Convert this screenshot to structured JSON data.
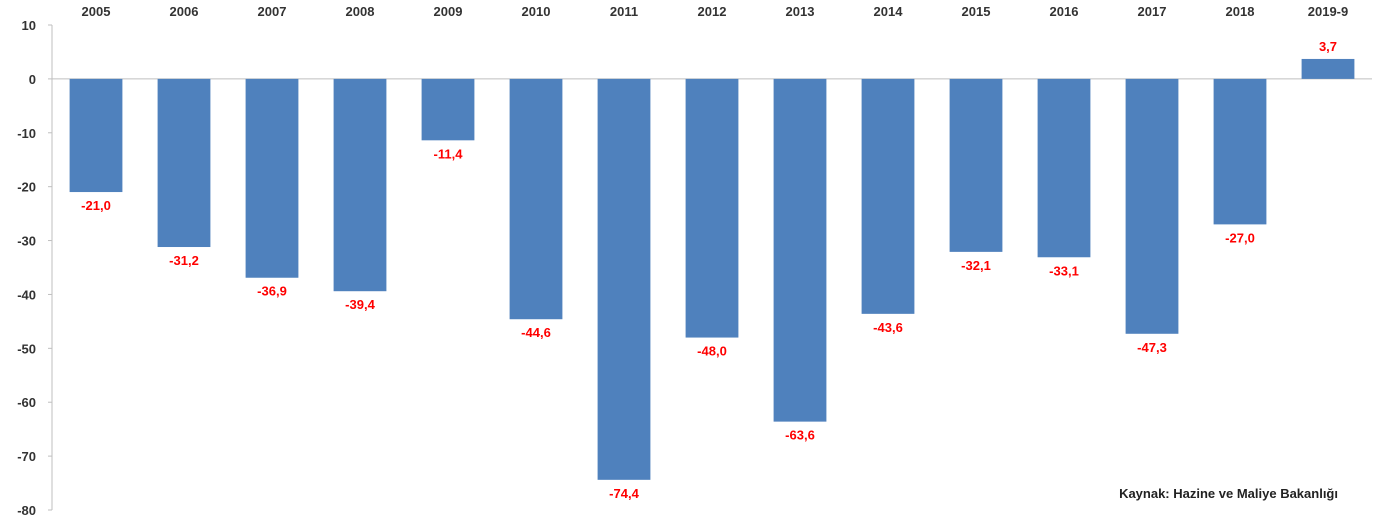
{
  "chart_data": {
    "type": "bar",
    "categories": [
      "2005",
      "2006",
      "2007",
      "2008",
      "2009",
      "2010",
      "2011",
      "2012",
      "2013",
      "2014",
      "2015",
      "2016",
      "2017",
      "2018",
      "2019-9"
    ],
    "values": [
      -21.0,
      -31.2,
      -36.9,
      -39.4,
      -11.4,
      -44.6,
      -74.4,
      -48.0,
      -63.6,
      -43.6,
      -32.1,
      -33.1,
      -47.3,
      -27.0,
      3.7
    ],
    "data_labels": [
      "-21,0",
      "-31,2",
      "-36,9",
      "-39,4",
      "-11,4",
      "-44,6",
      "-74,4",
      "-48,0",
      "-63,6",
      "-43,6",
      "-32,1",
      "-33,1",
      "-47,3",
      "-27,0",
      "3,7"
    ],
    "y_ticks": [
      10,
      0,
      -10,
      -20,
      -30,
      -40,
      -50,
      -60,
      -70,
      -80
    ],
    "ylim": [
      -80,
      10
    ],
    "title": "",
    "xlabel": "",
    "ylabel": "",
    "category_axis_position": "top",
    "grid": false,
    "legend": "none",
    "colors": {
      "bar": "#4f81bd",
      "label": "#ff0000",
      "axis": "#bfbfbf",
      "text": "#333333"
    }
  },
  "source_note": "Kaynak: Hazine ve Maliye Bakanlığı"
}
